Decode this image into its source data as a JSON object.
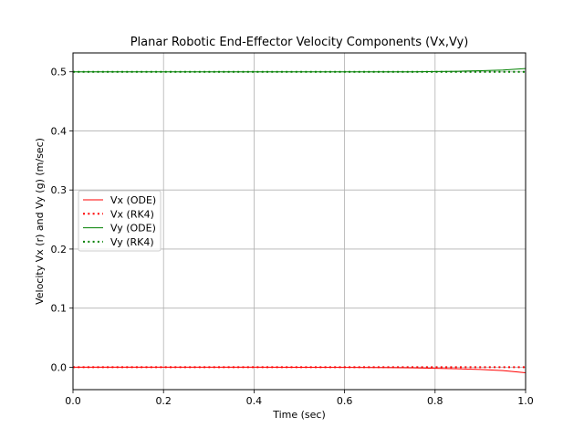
{
  "chart_data": {
    "type": "line",
    "title": "Planar Robotic End-Effector Velocity Components (Vx,Vy)",
    "xlabel": "Time (sec)",
    "ylabel": "Velocity Vx (r) and Vy (g) (m/sec)",
    "xlim": [
      0.0,
      1.0
    ],
    "ylim": [
      -0.038,
      0.532
    ],
    "xticks": [
      "0.0",
      "0.2",
      "0.4",
      "0.6",
      "0.8",
      "1.0"
    ],
    "yticks": [
      "0.0",
      "0.1",
      "0.2",
      "0.3",
      "0.4",
      "0.5"
    ],
    "grid": true,
    "legend_position": "center-left",
    "x": [
      0.0,
      0.1,
      0.2,
      0.3,
      0.4,
      0.5,
      0.6,
      0.65,
      0.7,
      0.75,
      0.8,
      0.85,
      0.9,
      0.95,
      1.0
    ],
    "series": [
      {
        "name": "Vx (ODE)",
        "color": "#ff0000",
        "style": "solid",
        "values": [
          0.0,
          0.0,
          0.0,
          0.0,
          0.0,
          -0.0001,
          -0.0003,
          -0.0005,
          -0.0008,
          -0.0012,
          -0.0018,
          -0.0027,
          -0.0039,
          -0.0058,
          -0.0095
        ]
      },
      {
        "name": "Vx (RK4)",
        "color": "#ff0000",
        "style": "dotted",
        "values": [
          0.0,
          0.0,
          0.0,
          0.0,
          0.0,
          0.0,
          0.0,
          0.0,
          0.0,
          0.0,
          0.0,
          0.0,
          0.0,
          0.0,
          0.0
        ]
      },
      {
        "name": "Vy (ODE)",
        "color": "#008000",
        "style": "solid",
        "values": [
          0.5,
          0.5,
          0.5,
          0.5,
          0.5,
          0.5,
          0.5,
          0.5,
          0.5,
          0.5,
          0.5005,
          0.501,
          0.5018,
          0.503,
          0.5055
        ]
      },
      {
        "name": "Vy (RK4)",
        "color": "#008000",
        "style": "dotted",
        "values": [
          0.5,
          0.5,
          0.5,
          0.5,
          0.5,
          0.5,
          0.5,
          0.5,
          0.5,
          0.5,
          0.5,
          0.5,
          0.5,
          0.5,
          0.5
        ]
      }
    ]
  }
}
